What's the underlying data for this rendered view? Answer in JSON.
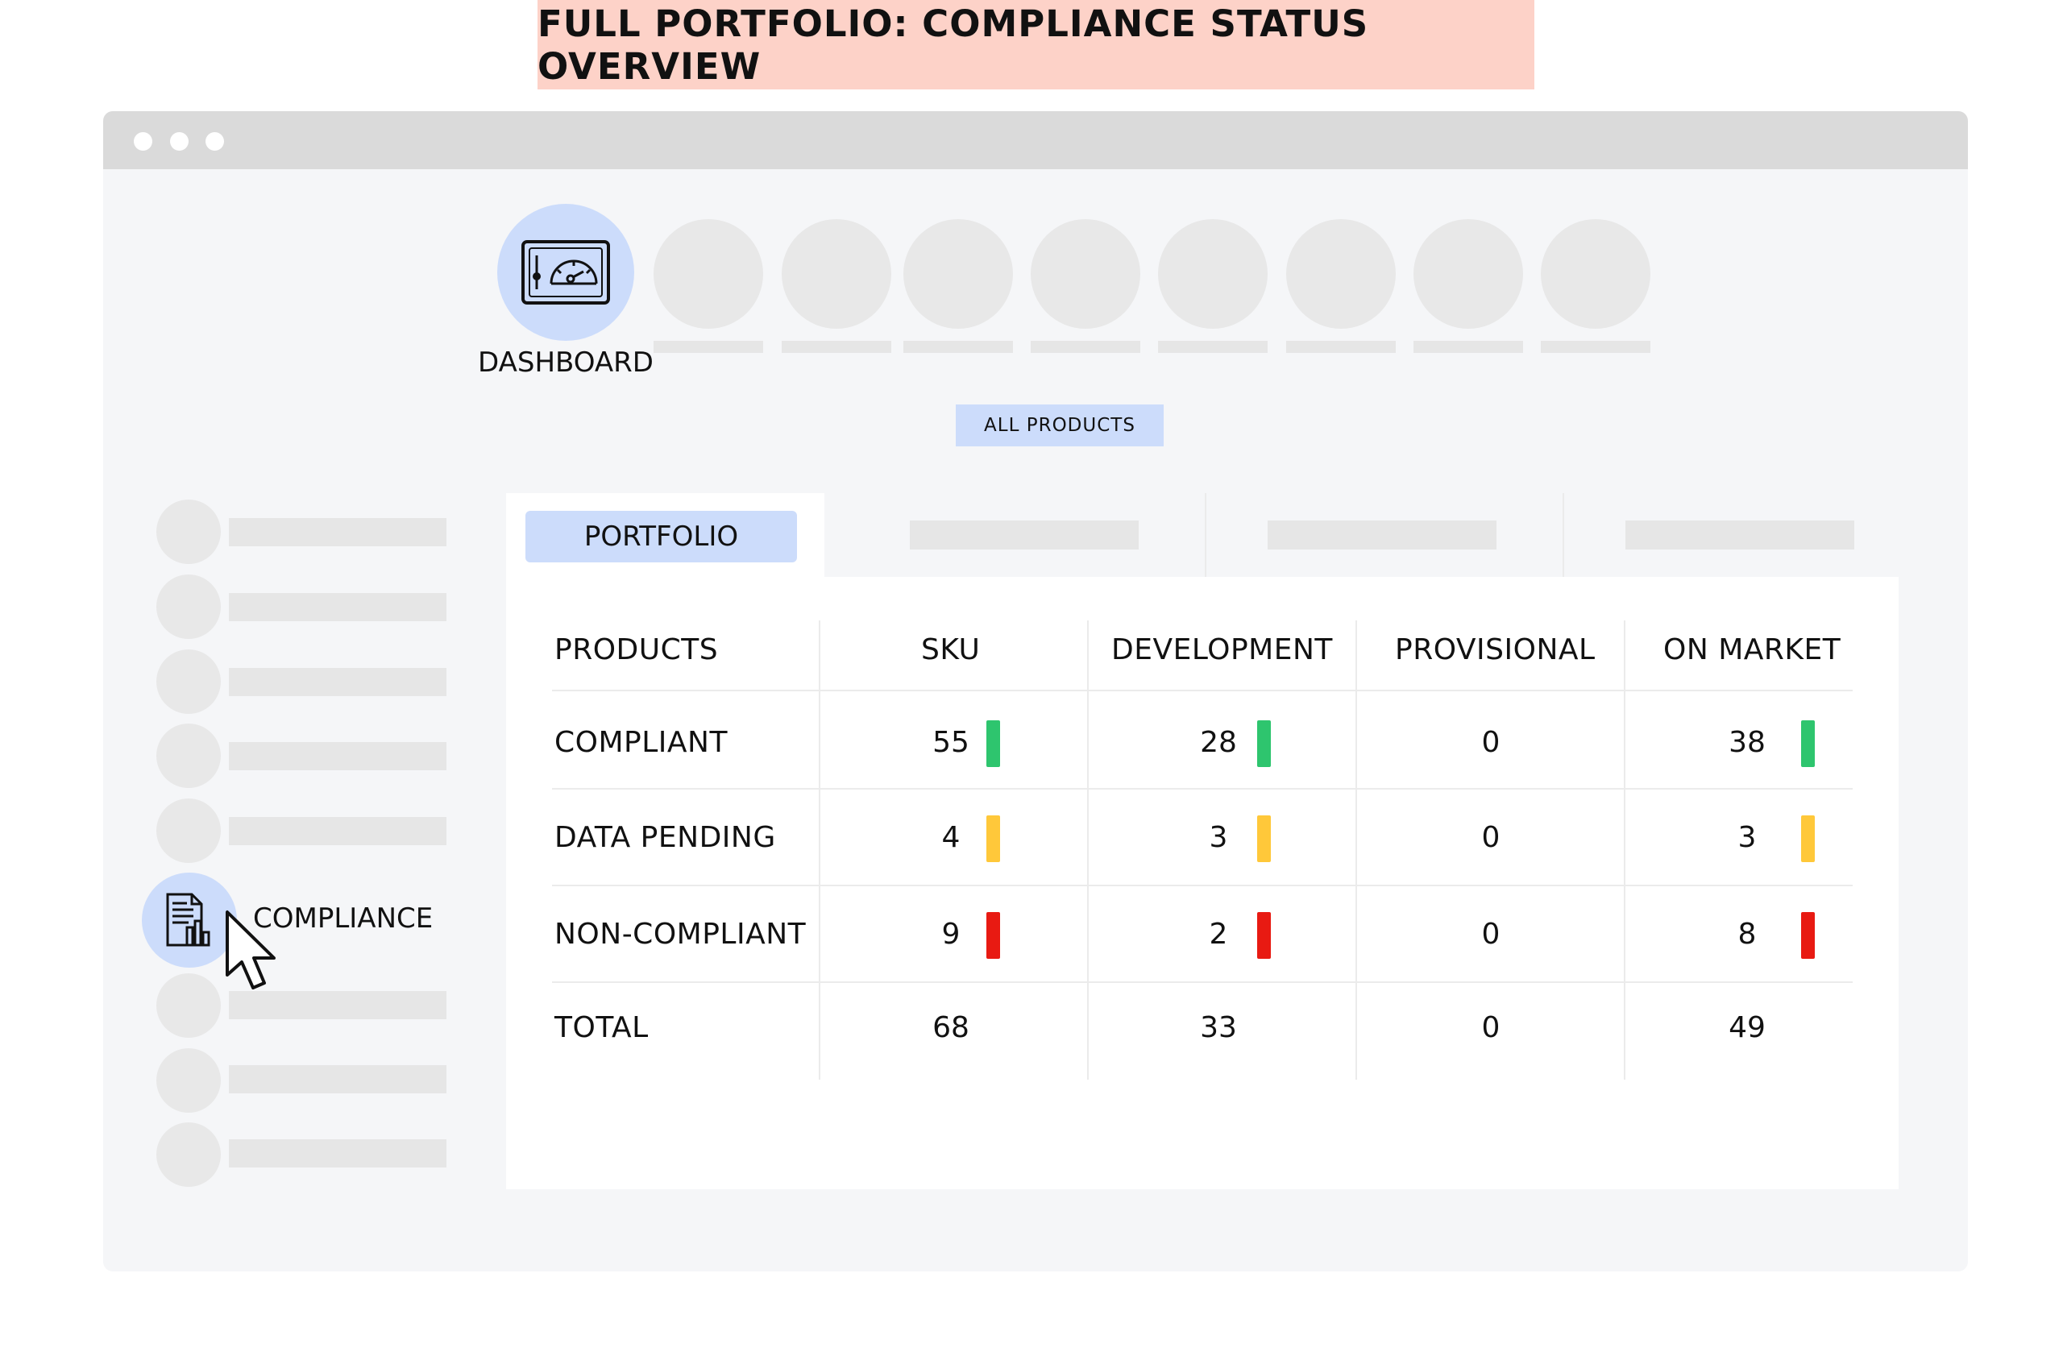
{
  "banner": {
    "title": "FULL PORTFOLIO: COMPLIANCE STATUS OVERVIEW"
  },
  "nav": {
    "dashboard_label": "DASHBOARD"
  },
  "filter": {
    "all_products_label": "ALL PRODUCTS"
  },
  "sidebar": {
    "compliance_label": "COMPLIANCE"
  },
  "tabs": {
    "portfolio_label": "PORTFOLIO"
  },
  "colors": {
    "banner": "#fdd2c8",
    "accent_blue": "#ccdcfb",
    "compliant": "#2ec56e",
    "pending": "#ffc83a",
    "noncompliant": "#e81a12"
  },
  "icons": [
    "gauge-icon",
    "compliance-report-icon",
    "mouse-pointer-icon"
  ],
  "table": {
    "headers": [
      "PRODUCTS",
      "SKU",
      "DEVELOPMENT",
      "PROVISIONAL",
      "ON MARKET"
    ],
    "rows": [
      {
        "label": "COMPLIANT",
        "status": "compliant",
        "values": [
          "55",
          "28",
          "0",
          "38"
        ]
      },
      {
        "label": "DATA PENDING",
        "status": "pending",
        "values": [
          "4",
          "3",
          "0",
          "3"
        ]
      },
      {
        "label": "NON-COMPLIANT",
        "status": "noncompliant",
        "values": [
          "9",
          "2",
          "0",
          "8"
        ]
      },
      {
        "label": "TOTAL",
        "status": "none",
        "values": [
          "68",
          "33",
          "0",
          "49"
        ]
      }
    ]
  }
}
